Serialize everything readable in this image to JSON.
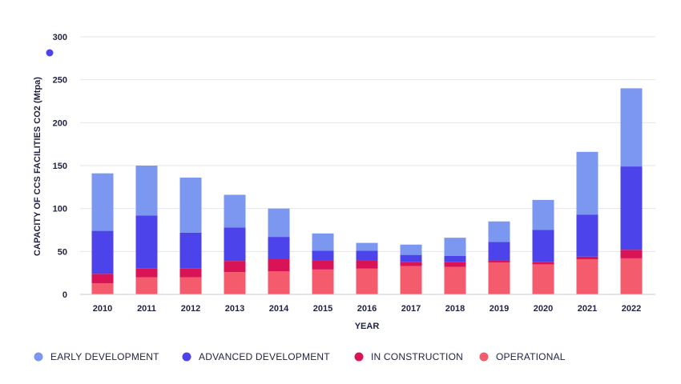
{
  "chart_data": {
    "type": "bar",
    "stacked": true,
    "categories": [
      "2010",
      "2011",
      "2012",
      "2013",
      "2014",
      "2015",
      "2016",
      "2017",
      "2018",
      "2019",
      "2020",
      "2021",
      "2022"
    ],
    "series": [
      {
        "name": "OPERATIONAL",
        "color": "#f45b6c",
        "values": [
          13,
          20,
          20,
          26,
          27,
          29,
          30,
          33,
          32,
          37,
          35,
          41,
          42
        ]
      },
      {
        "name": "IN CONSTRUCTION",
        "color": "#d81356",
        "values": [
          11,
          10,
          10,
          13,
          14,
          11,
          10,
          5,
          6,
          3,
          3,
          3,
          10
        ]
      },
      {
        "name": "ADVANCED DEVELOPMENT",
        "color": "#4c44ea",
        "values": [
          50,
          62,
          42,
          39,
          26,
          11,
          11,
          8,
          7,
          21,
          37,
          49,
          97
        ]
      },
      {
        "name": "EARLY DEVELOPMENT",
        "color": "#7b97ef",
        "values": [
          67,
          58,
          64,
          38,
          33,
          20,
          9,
          12,
          21,
          24,
          35,
          73,
          91
        ]
      }
    ],
    "legend_order": [
      "EARLY DEVELOPMENT",
      "ADVANCED DEVELOPMENT",
      "IN CONSTRUCTION",
      "OPERATIONAL"
    ],
    "xlabel": "YEAR",
    "ylabel": "CAPACITY OF CCS FACILITIES CO2 (Mtpa)",
    "ylim": [
      0,
      300
    ],
    "yticks": [
      "0",
      "50",
      "100",
      "150",
      "200",
      "250",
      "300"
    ],
    "grid": true,
    "legend_position": "bottom-left",
    "marker_color": "#4c44ea"
  }
}
